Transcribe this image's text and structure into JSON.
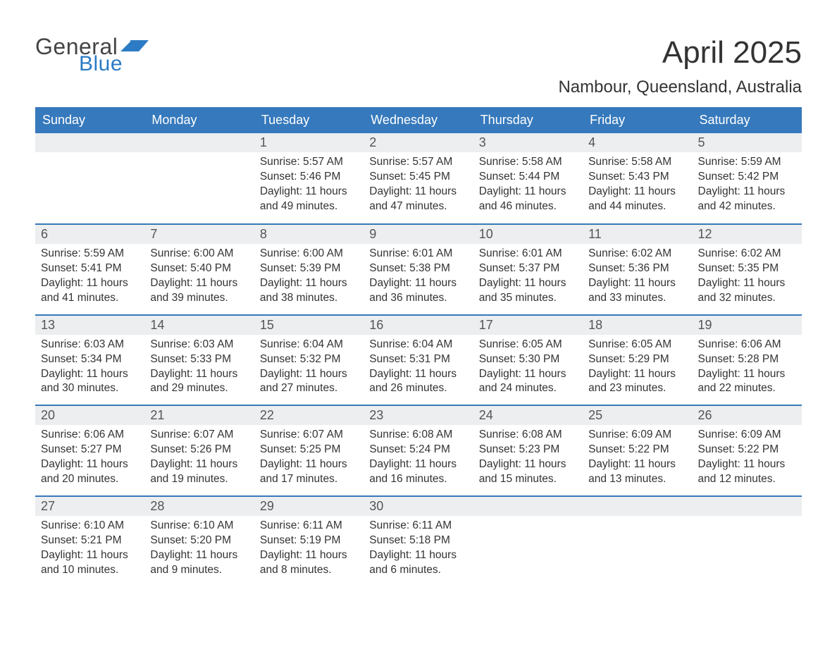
{
  "logo": {
    "text1": "General",
    "text2": "Blue",
    "color1": "#444444",
    "color2": "#2c7bc4"
  },
  "title": "April 2025",
  "location": "Nambour, Queensland, Australia",
  "colors": {
    "header_bg": "#3679bc",
    "header_text": "#ffffff",
    "daynum_bg": "#eceeef",
    "week_border": "#3679bc",
    "body_text": "#333333"
  },
  "fonts": {
    "title_size_pt": 33,
    "location_size_pt": 18,
    "dayheader_size_pt": 14,
    "cell_size_pt": 12
  },
  "day_names": [
    "Sunday",
    "Monday",
    "Tuesday",
    "Wednesday",
    "Thursday",
    "Friday",
    "Saturday"
  ],
  "weeks": [
    [
      null,
      null,
      {
        "n": "1",
        "sunrise": "5:57 AM",
        "sunset": "5:46 PM",
        "daylight": "11 hours and 49 minutes."
      },
      {
        "n": "2",
        "sunrise": "5:57 AM",
        "sunset": "5:45 PM",
        "daylight": "11 hours and 47 minutes."
      },
      {
        "n": "3",
        "sunrise": "5:58 AM",
        "sunset": "5:44 PM",
        "daylight": "11 hours and 46 minutes."
      },
      {
        "n": "4",
        "sunrise": "5:58 AM",
        "sunset": "5:43 PM",
        "daylight": "11 hours and 44 minutes."
      },
      {
        "n": "5",
        "sunrise": "5:59 AM",
        "sunset": "5:42 PM",
        "daylight": "11 hours and 42 minutes."
      }
    ],
    [
      {
        "n": "6",
        "sunrise": "5:59 AM",
        "sunset": "5:41 PM",
        "daylight": "11 hours and 41 minutes."
      },
      {
        "n": "7",
        "sunrise": "6:00 AM",
        "sunset": "5:40 PM",
        "daylight": "11 hours and 39 minutes."
      },
      {
        "n": "8",
        "sunrise": "6:00 AM",
        "sunset": "5:39 PM",
        "daylight": "11 hours and 38 minutes."
      },
      {
        "n": "9",
        "sunrise": "6:01 AM",
        "sunset": "5:38 PM",
        "daylight": "11 hours and 36 minutes."
      },
      {
        "n": "10",
        "sunrise": "6:01 AM",
        "sunset": "5:37 PM",
        "daylight": "11 hours and 35 minutes."
      },
      {
        "n": "11",
        "sunrise": "6:02 AM",
        "sunset": "5:36 PM",
        "daylight": "11 hours and 33 minutes."
      },
      {
        "n": "12",
        "sunrise": "6:02 AM",
        "sunset": "5:35 PM",
        "daylight": "11 hours and 32 minutes."
      }
    ],
    [
      {
        "n": "13",
        "sunrise": "6:03 AM",
        "sunset": "5:34 PM",
        "daylight": "11 hours and 30 minutes."
      },
      {
        "n": "14",
        "sunrise": "6:03 AM",
        "sunset": "5:33 PM",
        "daylight": "11 hours and 29 minutes."
      },
      {
        "n": "15",
        "sunrise": "6:04 AM",
        "sunset": "5:32 PM",
        "daylight": "11 hours and 27 minutes."
      },
      {
        "n": "16",
        "sunrise": "6:04 AM",
        "sunset": "5:31 PM",
        "daylight": "11 hours and 26 minutes."
      },
      {
        "n": "17",
        "sunrise": "6:05 AM",
        "sunset": "5:30 PM",
        "daylight": "11 hours and 24 minutes."
      },
      {
        "n": "18",
        "sunrise": "6:05 AM",
        "sunset": "5:29 PM",
        "daylight": "11 hours and 23 minutes."
      },
      {
        "n": "19",
        "sunrise": "6:06 AM",
        "sunset": "5:28 PM",
        "daylight": "11 hours and 22 minutes."
      }
    ],
    [
      {
        "n": "20",
        "sunrise": "6:06 AM",
        "sunset": "5:27 PM",
        "daylight": "11 hours and 20 minutes."
      },
      {
        "n": "21",
        "sunrise": "6:07 AM",
        "sunset": "5:26 PM",
        "daylight": "11 hours and 19 minutes."
      },
      {
        "n": "22",
        "sunrise": "6:07 AM",
        "sunset": "5:25 PM",
        "daylight": "11 hours and 17 minutes."
      },
      {
        "n": "23",
        "sunrise": "6:08 AM",
        "sunset": "5:24 PM",
        "daylight": "11 hours and 16 minutes."
      },
      {
        "n": "24",
        "sunrise": "6:08 AM",
        "sunset": "5:23 PM",
        "daylight": "11 hours and 15 minutes."
      },
      {
        "n": "25",
        "sunrise": "6:09 AM",
        "sunset": "5:22 PM",
        "daylight": "11 hours and 13 minutes."
      },
      {
        "n": "26",
        "sunrise": "6:09 AM",
        "sunset": "5:22 PM",
        "daylight": "11 hours and 12 minutes."
      }
    ],
    [
      {
        "n": "27",
        "sunrise": "6:10 AM",
        "sunset": "5:21 PM",
        "daylight": "11 hours and 10 minutes."
      },
      {
        "n": "28",
        "sunrise": "6:10 AM",
        "sunset": "5:20 PM",
        "daylight": "11 hours and 9 minutes."
      },
      {
        "n": "29",
        "sunrise": "6:11 AM",
        "sunset": "5:19 PM",
        "daylight": "11 hours and 8 minutes."
      },
      {
        "n": "30",
        "sunrise": "6:11 AM",
        "sunset": "5:18 PM",
        "daylight": "11 hours and 6 minutes."
      },
      null,
      null,
      null
    ]
  ],
  "labels": {
    "sunrise": "Sunrise: ",
    "sunset": "Sunset: ",
    "daylight": "Daylight: "
  }
}
